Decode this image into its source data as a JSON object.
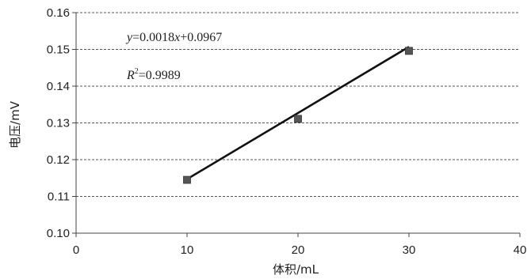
{
  "chart_data": {
    "type": "scatter",
    "xlabel": "体积/mL",
    "ylabel": "电压/mV",
    "xlim": [
      0,
      40
    ],
    "ylim": [
      0.1,
      0.16
    ],
    "x_ticks": [
      0,
      10,
      20,
      30,
      40
    ],
    "y_ticks": [
      0.1,
      0.11,
      0.12,
      0.13,
      0.14,
      0.15,
      0.16
    ],
    "x_tick_labels": [
      "0",
      "10",
      "20",
      "30",
      "40"
    ],
    "y_tick_labels": [
      "0.10",
      "0.11",
      "0.12",
      "0.13",
      "0.14",
      "0.15",
      "0.16"
    ],
    "grid": "horizontal-dashed",
    "series": [
      {
        "x": [
          10,
          20,
          30
        ],
        "y": [
          0.1145,
          0.1311,
          0.1496
        ],
        "marker": "square",
        "color": "#555555"
      }
    ],
    "trendline": {
      "slope": 0.0018,
      "intercept": 0.0967,
      "x_range": [
        10,
        30
      ],
      "color": "#111111"
    },
    "annotations": {
      "equation": {
        "y": "y",
        "eq": "=0.0018",
        "x": "x",
        "rest": "+0.0967"
      },
      "r_squared": {
        "r": "R",
        "sup": "2",
        "value": "=0.9989"
      }
    }
  }
}
